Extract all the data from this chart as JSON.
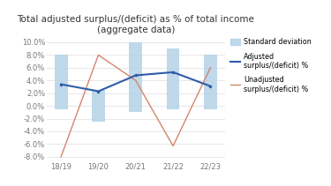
{
  "title_line1": "Total adjusted surplus/(deficit) as % of total income",
  "title_line2": "(aggregate data)",
  "categories": [
    "18/19",
    "19/20",
    "20/21",
    "21/22",
    "22/23"
  ],
  "adjusted": [
    3.4,
    2.3,
    4.8,
    5.3,
    3.1
  ],
  "unadjusted": [
    -8.0,
    8.0,
    4.0,
    -6.3,
    6.0
  ],
  "std_bar_bottom": [
    -0.5,
    -2.5,
    -1.0,
    -0.5,
    -0.5
  ],
  "std_bar_top": [
    8.0,
    2.5,
    10.0,
    9.0,
    8.0
  ],
  "ylim_min": -8.5,
  "ylim_max": 10.8,
  "yticks": [
    -8.0,
    -6.0,
    -4.0,
    -2.0,
    0.0,
    2.0,
    4.0,
    6.0,
    8.0,
    10.0
  ],
  "adjusted_color": "#2E5CA8",
  "unadjusted_color": "#D4856A",
  "std_color": "#B8D4E8",
  "background_color": "#FFFFFF",
  "plot_area_color": "#FFFFFF",
  "legend_std": "Standard deviation",
  "legend_adjusted": "Adjusted\nsurplus/(deficit) %",
  "legend_unadjusted": "Unadjusted\nsurplus/(deficit) %",
  "bar_width": 0.35,
  "title_fontsize": 7.5,
  "tick_fontsize": 6.0,
  "legend_fontsize": 5.8
}
